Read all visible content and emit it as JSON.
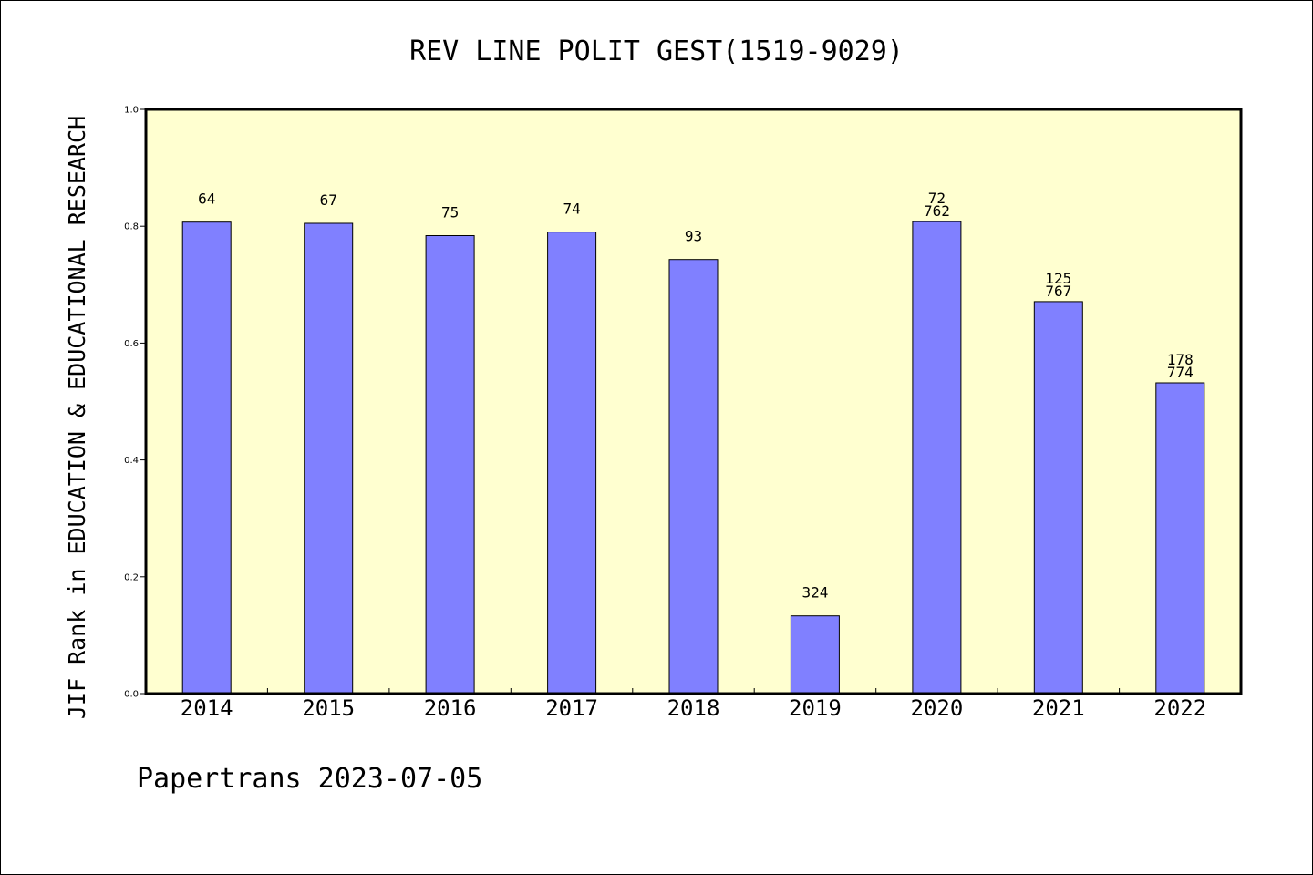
{
  "chart_data": {
    "type": "bar",
    "title": "REV LINE POLIT GEST(1519-9029)",
    "xlabel": "",
    "ylabel": "JIF Rank in EDUCATION & EDUCATIONAL RESEARCH",
    "ylim": [
      0,
      1.0
    ],
    "yticks": [
      "0.0",
      "0.2",
      "0.4",
      "0.6",
      "0.8",
      "1.0"
    ],
    "categories": [
      "2014",
      "2015",
      "2016",
      "2017",
      "2018",
      "2019",
      "2020",
      "2021",
      "2022"
    ],
    "values": [
      0.807,
      0.805,
      0.784,
      0.79,
      0.743,
      0.133,
      0.808,
      0.671,
      0.532
    ],
    "bar_labels": [
      [
        "64"
      ],
      [
        "67"
      ],
      [
        "75"
      ],
      [
        "74"
      ],
      [
        "93"
      ],
      [
        "324"
      ],
      [
        "72",
        "762"
      ],
      [
        "125",
        "767"
      ],
      [
        "178",
        "774"
      ]
    ],
    "grid": false,
    "legend": "none",
    "colors": {
      "plot_background": "#ffffd0",
      "bar_fill": "#8080ff",
      "bar_stroke": "#000000",
      "axis": "#000000"
    }
  },
  "footer": {
    "text": "Papertrans 2023-07-05"
  }
}
